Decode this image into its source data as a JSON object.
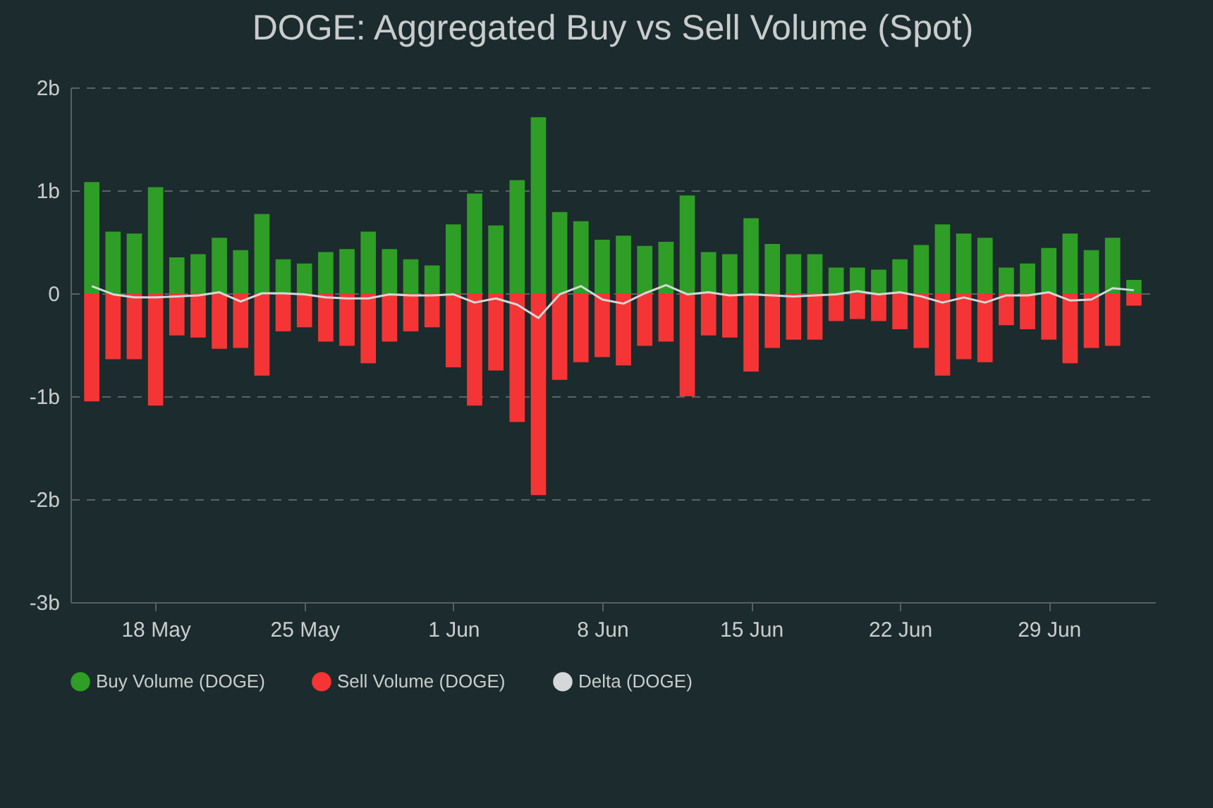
{
  "chart_data": {
    "type": "bar",
    "title": "DOGE: Aggregated Buy vs Sell Volume (Spot)",
    "x": [
      "--05-15",
      "--05-16",
      "--05-17",
      "--05-18",
      "--05-19",
      "--05-20",
      "--05-21",
      "--05-22",
      "--05-23",
      "--05-24",
      "--05-25",
      "--05-26",
      "--05-27",
      "--05-28",
      "--05-29",
      "--05-30",
      "--05-31",
      "--06-01",
      "--06-02",
      "--06-03",
      "--06-04",
      "--06-05",
      "--06-06",
      "--06-07",
      "--06-08",
      "--06-09",
      "--06-10",
      "--06-11",
      "--06-12",
      "--06-13",
      "--06-14",
      "--06-15",
      "--06-16",
      "--06-17",
      "--06-18",
      "--06-19",
      "--06-20",
      "--06-21",
      "--06-22",
      "--06-23",
      "--06-24",
      "--06-25",
      "--06-26",
      "--06-27",
      "--06-28",
      "--06-29",
      "--06-30",
      "--07-01",
      "--07-02",
      "--07-03"
    ],
    "series": [
      {
        "name": "Buy Volume (DOGE)",
        "color": "#2e9e26",
        "values": [
          1.08,
          0.6,
          0.58,
          1.03,
          0.35,
          0.38,
          0.54,
          0.42,
          0.77,
          0.33,
          0.29,
          0.4,
          0.43,
          0.6,
          0.43,
          0.33,
          0.27,
          0.67,
          0.97,
          0.66,
          1.1,
          1.71,
          0.79,
          0.7,
          0.52,
          0.56,
          0.46,
          0.5,
          0.95,
          0.4,
          0.38,
          0.73,
          0.48,
          0.38,
          0.38,
          0.25,
          0.25,
          0.23,
          0.33,
          0.47,
          0.67,
          0.58,
          0.54,
          0.25,
          0.29,
          0.44,
          0.58,
          0.42,
          0.54,
          0.13
        ]
      },
      {
        "name": "Sell Volume (DOGE)",
        "color": "#f53535",
        "values": [
          -1.05,
          -0.64,
          -0.64,
          -1.09,
          -0.41,
          -0.43,
          -0.54,
          -0.53,
          -0.8,
          -0.37,
          -0.33,
          -0.47,
          -0.51,
          -0.68,
          -0.47,
          -0.37,
          -0.33,
          -0.72,
          -1.09,
          -0.75,
          -1.25,
          -1.96,
          -0.84,
          -0.67,
          -0.62,
          -0.7,
          -0.51,
          -0.47,
          -1.0,
          -0.41,
          -0.43,
          -0.76,
          -0.53,
          -0.45,
          -0.45,
          -0.27,
          -0.25,
          -0.27,
          -0.35,
          -0.53,
          -0.8,
          -0.64,
          -0.67,
          -0.31,
          -0.35,
          -0.45,
          -0.68,
          -0.53,
          -0.51,
          -0.12
        ]
      },
      {
        "name": "Delta (DOGE)",
        "type": "line",
        "color": "#d4d8d8",
        "values": [
          0.07,
          -0.01,
          -0.04,
          -0.04,
          -0.03,
          -0.02,
          0.01,
          -0.08,
          0.0,
          0.0,
          -0.01,
          -0.04,
          -0.05,
          -0.05,
          -0.01,
          -0.02,
          -0.02,
          -0.01,
          -0.09,
          -0.05,
          -0.11,
          -0.24,
          -0.01,
          0.07,
          -0.06,
          -0.1,
          0.0,
          0.08,
          -0.01,
          0.01,
          -0.02,
          -0.01,
          -0.02,
          -0.03,
          -0.02,
          -0.01,
          0.02,
          -0.01,
          0.01,
          -0.03,
          -0.09,
          -0.04,
          -0.09,
          -0.02,
          -0.02,
          0.01,
          -0.07,
          -0.06,
          0.05,
          0.03
        ]
      }
    ],
    "xlim": [
      "--05-14",
      "--07-04"
    ],
    "xticks": [
      {
        "value": "--05-18",
        "label": "18 May"
      },
      {
        "value": "--05-25",
        "label": "25 May"
      },
      {
        "value": "--06-01",
        "label": "1 Jun"
      },
      {
        "value": "--06-08",
        "label": "8 Jun"
      },
      {
        "value": "--06-15",
        "label": "15 Jun"
      },
      {
        "value": "--06-22",
        "label": "22 Jun"
      },
      {
        "value": "--06-29",
        "label": "29 Jun"
      }
    ],
    "ylim": [
      -3,
      2
    ],
    "yticks": [
      {
        "value": -3,
        "label": "-3b"
      },
      {
        "value": -2,
        "label": "-2b"
      },
      {
        "value": -1,
        "label": "-1b"
      },
      {
        "value": 0,
        "label": "0"
      },
      {
        "value": 1,
        "label": "1b"
      },
      {
        "value": 2,
        "label": "2b"
      }
    ],
    "stacked": true,
    "grid": "y",
    "legend": "bottom"
  }
}
